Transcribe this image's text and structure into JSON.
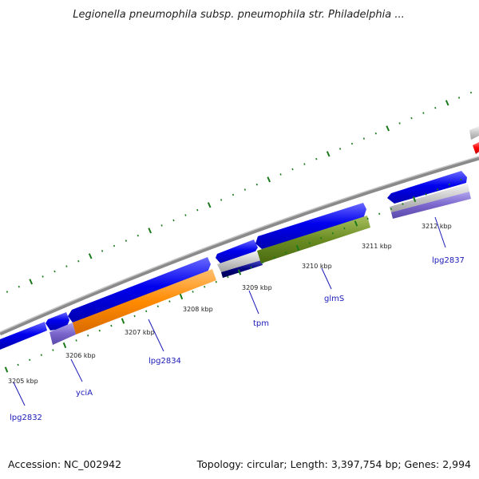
{
  "title": "Legionella pneumophila subsp. pneumophila str. Philadelphia ...",
  "footer": {
    "accession": "Accession: NC_002942",
    "summary": "Topology: circular; Length: 3,397,754 bp; Genes: 2,994"
  },
  "ticks": [
    {
      "label": "3205 kbp"
    },
    {
      "label": "3206 kbp"
    },
    {
      "label": "3207 kbp"
    },
    {
      "label": "3208 kbp"
    },
    {
      "label": "3209 kbp"
    },
    {
      "label": "3210 kbp"
    },
    {
      "label": "3211 kbp"
    },
    {
      "label": "3212 kbp"
    }
  ],
  "genes": [
    {
      "name": "lpg2832"
    },
    {
      "name": "yciA"
    },
    {
      "name": "lpg2834"
    },
    {
      "name": "tpm"
    },
    {
      "name": "glmS"
    },
    {
      "name": "lpg2837"
    }
  ],
  "colors": {
    "backbone": "#8a8a8a",
    "cds": "#0000ee",
    "tick": "#1a7a1a",
    "orange": "#ff8a00",
    "olive": "#6a8c22",
    "navy": "#000080",
    "purple": "#7a66cc",
    "red": "#ff0000",
    "gene_label": "#1a1ab8"
  }
}
